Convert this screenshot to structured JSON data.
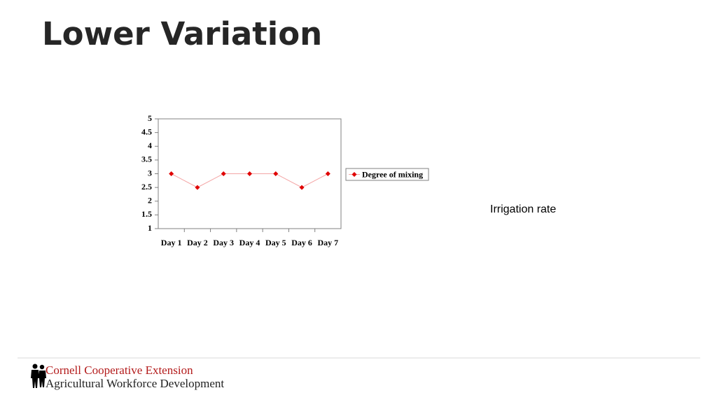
{
  "title": "Lower Variation",
  "side_label": "Irrigation rate",
  "footer": {
    "org": "Cornell Cooperative Extension",
    "program": "Agricultural Workforce Development"
  },
  "chart_data": {
    "type": "line",
    "categories": [
      "Day 1",
      "Day 2",
      "Day 3",
      "Day 4",
      "Day 5",
      "Day 6",
      "Day 7"
    ],
    "series": [
      {
        "name": "Degree of mixing",
        "color": "#e00000",
        "values": [
          3,
          2.5,
          3,
          3,
          3,
          2.5,
          3
        ]
      }
    ],
    "ylim": [
      1,
      5
    ],
    "yticks": [
      1,
      1.5,
      2,
      2.5,
      3,
      3.5,
      4,
      4.5,
      5
    ],
    "grid": false,
    "legend": "right"
  }
}
